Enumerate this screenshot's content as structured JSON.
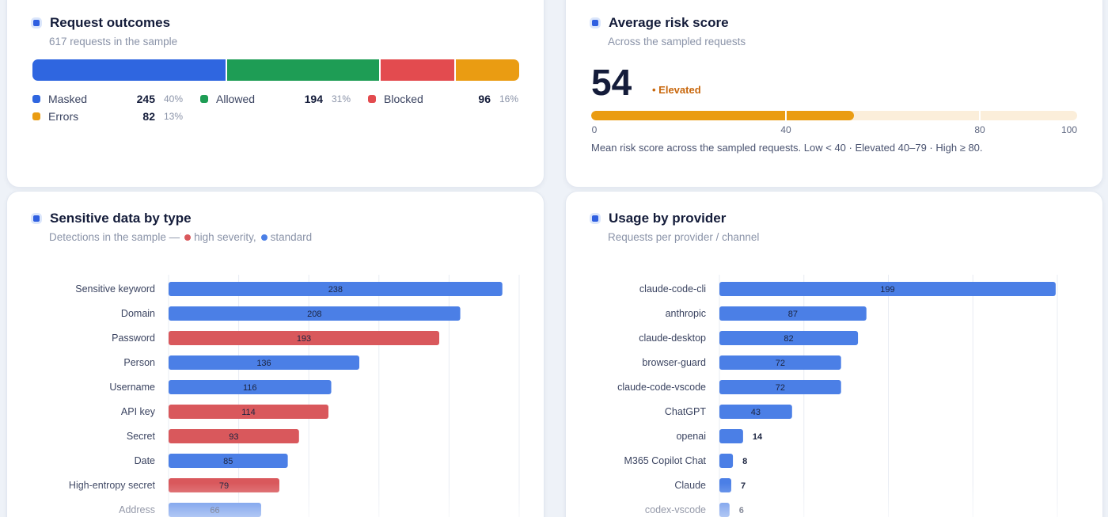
{
  "outcomes": {
    "title": "Request outcomes",
    "subtitle": "617 requests in the sample",
    "segments": [
      {
        "label": "Masked",
        "count": 245,
        "pct": "40%",
        "color": "#2f66e0"
      },
      {
        "label": "Allowed",
        "count": 194,
        "pct": "31%",
        "color": "#1e9d55"
      },
      {
        "label": "Blocked",
        "count": 96,
        "pct": "16%",
        "color": "#e34b4f"
      },
      {
        "label": "Errors",
        "count": 82,
        "pct": "13%",
        "color": "#ea9c12"
      }
    ]
  },
  "risk": {
    "title": "Average risk score",
    "subtitle": "Across the sampled requests",
    "value": "54",
    "level": "• Elevated",
    "score": 54,
    "thresholds": [
      40,
      80
    ],
    "ticks": [
      "0",
      "40",
      "80",
      "100"
    ],
    "note": "Mean risk score across the sampled requests. Low < 40 · Elevated 40–79 · High ≥ 80.",
    "fill_color": "#ea9c12",
    "track_color": "#fbeeda"
  },
  "sensitive": {
    "title": "Sensitive data by type",
    "subtitle_prefix": "Detections in the sample —",
    "legend_high": "high severity,",
    "legend_standard": "standard",
    "high_color": "#d9585c",
    "standard_color": "#4b7fe6"
  },
  "usage": {
    "title": "Usage by provider",
    "subtitle": "Requests per provider / channel",
    "bar_color": "#4b7fe6"
  },
  "chart_data": [
    {
      "type": "bar",
      "orientation": "horizontal",
      "categories": [
        "Sensitive keyword",
        "Domain",
        "Password",
        "Person",
        "Username",
        "API key",
        "Secret",
        "Date",
        "High-entropy secret",
        "Address"
      ],
      "values": [
        238,
        208,
        193,
        136,
        116,
        114,
        93,
        85,
        79,
        66
      ],
      "severity": [
        "standard",
        "standard",
        "high",
        "standard",
        "standard",
        "high",
        "high",
        "standard",
        "high",
        "standard"
      ],
      "xlim": [
        0,
        250
      ],
      "grid": true
    },
    {
      "type": "bar",
      "orientation": "horizontal",
      "categories": [
        "claude-code-cli",
        "anthropic",
        "claude-desktop",
        "browser-guard",
        "claude-code-vscode",
        "ChatGPT",
        "openai",
        "M365 Copilot Chat",
        "Claude",
        "codex-vscode"
      ],
      "values": [
        199,
        87,
        82,
        72,
        72,
        43,
        14,
        8,
        7,
        6
      ],
      "xlim": [
        0,
        200
      ],
      "grid": true
    }
  ]
}
